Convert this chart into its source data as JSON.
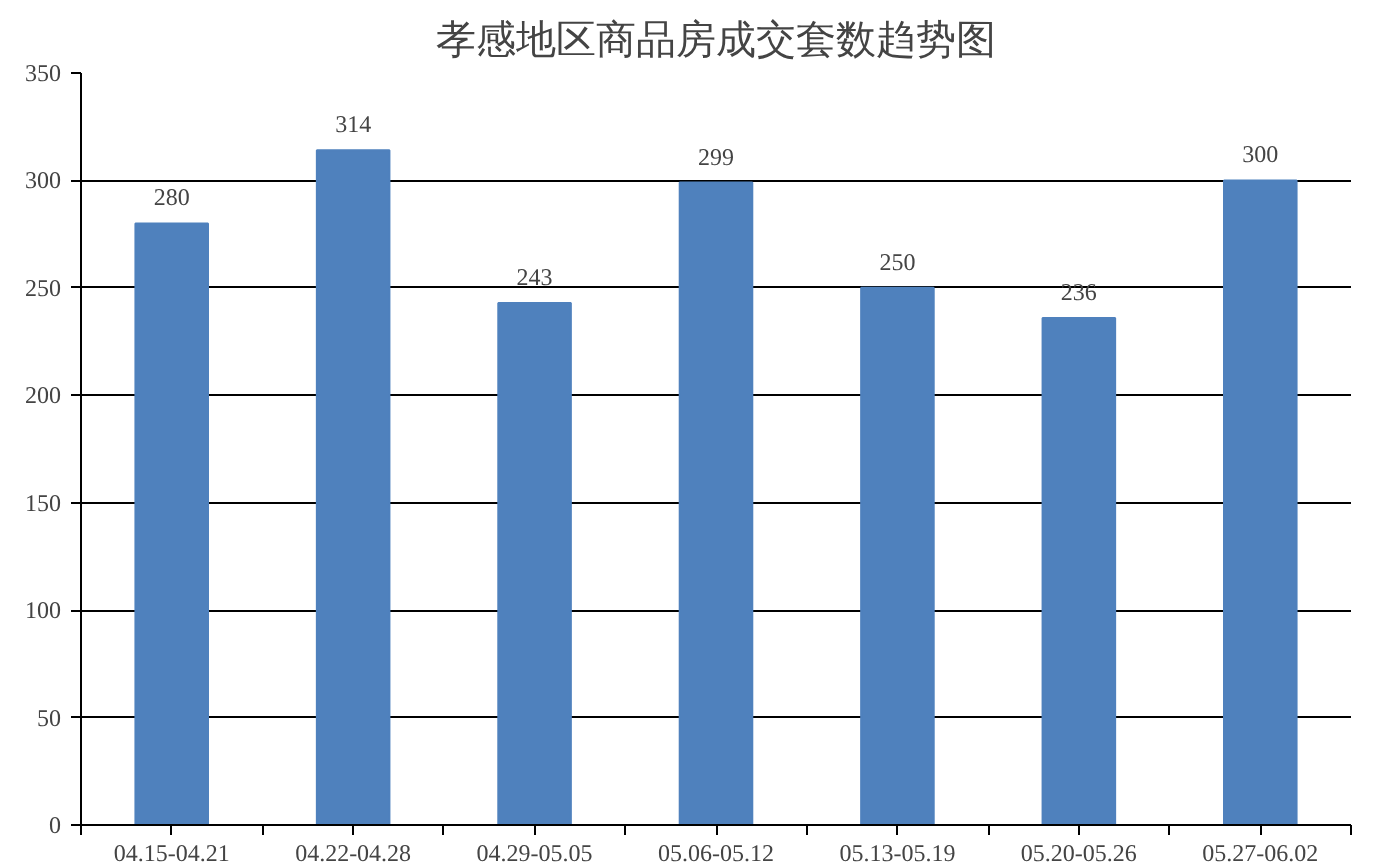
{
  "chart_data": {
    "type": "bar",
    "title": "孝感地区商品房成交套数趋势图",
    "categories": [
      "04.15-04.21",
      "04.22-04.28",
      "04.29-05.05",
      "05.06-05.12",
      "05.13-05.19",
      "05.20-05.26",
      "05.27-06.02"
    ],
    "values": [
      280,
      314,
      243,
      299,
      250,
      236,
      300
    ],
    "color": "#4f81bd",
    "ylim": [
      0,
      350
    ],
    "yticks": [
      0,
      50,
      100,
      150,
      200,
      250,
      300,
      350
    ],
    "grid": "y",
    "data_labels": true
  }
}
